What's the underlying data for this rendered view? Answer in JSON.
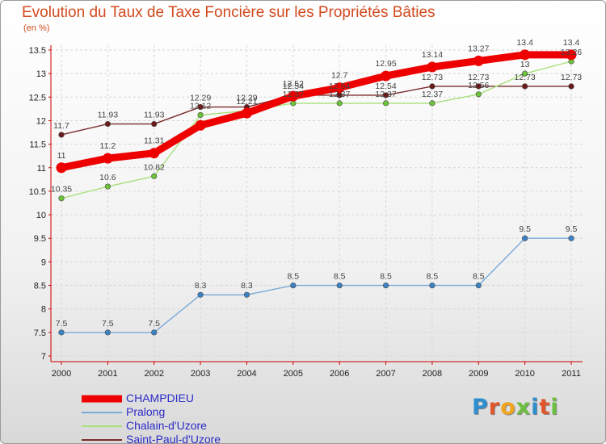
{
  "title": "Evolution du Taux de Taxe Foncière sur les Propriétés Bâties",
  "unit": "(en %)",
  "logo": {
    "text": "Proxiti",
    "colors": [
      "#2d8fd0",
      "#e2562a",
      "#f0a51d",
      "#6cbf3f",
      "#2d8fd0",
      "#e2562a",
      "#6cbf3f"
    ]
  },
  "chart_data": {
    "type": "line",
    "title": "Evolution du Taux de Taxe Foncière sur les Propriétés Bâties",
    "ylabel": "(en %)",
    "xlabel": "",
    "ylim": [
      7,
      13.5
    ],
    "yticks": [
      "7",
      "7.5",
      "8",
      "8.5",
      "9",
      "9.5",
      "10",
      "10.5",
      "11",
      "11.5",
      "12",
      "12.5",
      "13",
      "13.5"
    ],
    "x": [
      "2000",
      "2001",
      "2002",
      "2003",
      "2004",
      "2005",
      "2006",
      "2007",
      "2008",
      "2009",
      "2010",
      "2011"
    ],
    "grid": true,
    "legend_position": "bottom-left",
    "series": [
      {
        "name": "CHAMPDIEU",
        "color": "#ee0000",
        "marker_color": "#ee0000",
        "values": [
          11,
          11.2,
          11.31,
          11.9,
          12.16,
          12.52,
          12.7,
          12.95,
          13.14,
          13.27,
          13.4,
          13.4
        ],
        "labels": [
          "11",
          "11.2",
          "11.31",
          "",
          "",
          "12.52",
          "12.7",
          "12.95",
          "13.14",
          "13.27",
          "13.4",
          "13.4"
        ]
      },
      {
        "name": "Pralong",
        "color": "#7aaad8",
        "marker_color": "#3b82c4",
        "values": [
          7.5,
          7.5,
          7.5,
          8.3,
          8.3,
          8.5,
          8.5,
          8.5,
          8.5,
          8.5,
          9.5,
          9.5
        ],
        "labels": [
          "7.5",
          "7.5",
          "7.5",
          "8.3",
          "8.3",
          "8.5",
          "8.5",
          "8.5",
          "8.5",
          "8.5",
          "9.5",
          "9.5"
        ]
      },
      {
        "name": "Chalain-d'Uzore",
        "color": "#a8e07a",
        "marker_color": "#6cc23a",
        "values": [
          10.35,
          10.6,
          10.82,
          12.12,
          12.21,
          12.37,
          12.37,
          12.37,
          12.37,
          12.56,
          13,
          13.26
        ],
        "labels": [
          "10.35",
          "10.6",
          "10.82",
          "12.12",
          "12.21",
          "12.37",
          "12.37",
          "12.37",
          "12.37",
          "12.56",
          "13",
          "13.26"
        ]
      },
      {
        "name": "Saint-Paul-d'Uzore",
        "color": "#7a2a2a",
        "marker_color": "#6a1a1a",
        "values": [
          11.7,
          11.93,
          11.93,
          12.29,
          12.29,
          12.54,
          12.54,
          12.54,
          12.73,
          12.73,
          12.73,
          12.73
        ],
        "labels": [
          "11.7",
          "11.93",
          "11.93",
          "12.29",
          "12.29",
          "12.54",
          "12.54",
          "12.54",
          "12.73",
          "12.73",
          "12.73",
          "12.73"
        ]
      }
    ]
  }
}
